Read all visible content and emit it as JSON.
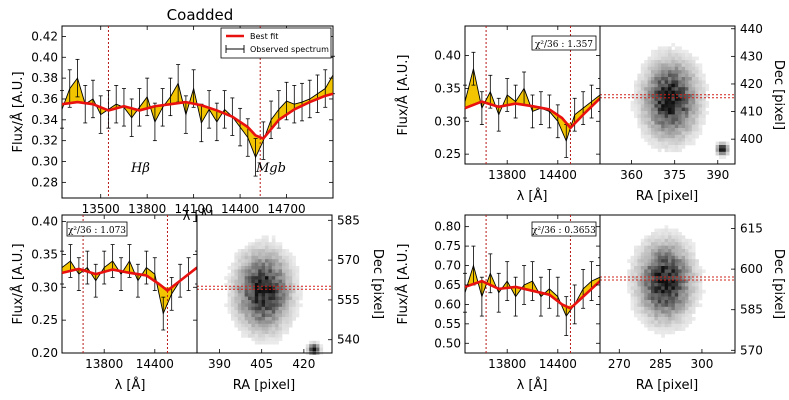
{
  "colors": {
    "fit": "#e8110f",
    "fill": "#f2c500",
    "line_marker": "#b81a1a"
  },
  "chart_data": [
    {
      "id": "main",
      "type": "line",
      "title": "Coadded",
      "xlabel": "λ [Å]",
      "ylabel": "Flux/Å [A.U.]",
      "xlim": [
        13250,
        15000
      ],
      "ylim": [
        0.265,
        0.43
      ],
      "xticks": [
        "13500",
        "13800",
        "14100",
        "14400",
        "14700"
      ],
      "yticks": [
        "0.28",
        "0.30",
        "0.32",
        "0.34",
        "0.36",
        "0.38",
        "0.40",
        "0.42"
      ],
      "lines": [
        {
          "wavelength": 13550,
          "label": "Hβ"
        },
        {
          "wavelength": 14530,
          "label": "Mgb"
        }
      ],
      "legend": [
        "Best fit",
        "Observed spectrum"
      ],
      "series": [
        {
          "name": "Observed spectrum",
          "x": [
            13250,
            13300,
            13350,
            13400,
            13450,
            13500,
            13550,
            13600,
            13650,
            13700,
            13750,
            13800,
            13850,
            13900,
            13950,
            14000,
            14050,
            14100,
            14150,
            14200,
            14250,
            14300,
            14350,
            14400,
            14450,
            14500,
            14550,
            14600,
            14650,
            14700,
            14750,
            14800,
            14850,
            14900,
            14950,
            15000
          ],
          "y": [
            0.35,
            0.37,
            0.38,
            0.355,
            0.36,
            0.345,
            0.35,
            0.355,
            0.352,
            0.342,
            0.352,
            0.362,
            0.338,
            0.352,
            0.362,
            0.375,
            0.345,
            0.37,
            0.337,
            0.35,
            0.338,
            0.35,
            0.343,
            0.333,
            0.323,
            0.304,
            0.32,
            0.34,
            0.35,
            0.358,
            0.355,
            0.357,
            0.36,
            0.365,
            0.37,
            0.383
          ],
          "err": [
            0.018,
            0.018,
            0.018,
            0.018,
            0.018,
            0.018,
            0.018,
            0.018,
            0.018,
            0.018,
            0.018,
            0.018,
            0.018,
            0.018,
            0.018,
            0.018,
            0.018,
            0.018,
            0.018,
            0.018,
            0.018,
            0.018,
            0.018,
            0.018,
            0.018,
            0.018,
            0.018,
            0.018,
            0.018,
            0.018,
            0.018,
            0.018,
            0.018,
            0.018,
            0.018,
            0.018
          ]
        },
        {
          "name": "Best fit",
          "x": [
            13250,
            13350,
            13450,
            13550,
            13650,
            13750,
            13850,
            13950,
            14050,
            14150,
            14250,
            14350,
            14450,
            14500,
            14550,
            14650,
            14750,
            14850,
            14950,
            15000
          ],
          "y": [
            0.355,
            0.357,
            0.355,
            0.349,
            0.353,
            0.349,
            0.353,
            0.355,
            0.357,
            0.354,
            0.349,
            0.343,
            0.333,
            0.325,
            0.322,
            0.34,
            0.35,
            0.357,
            0.363,
            0.365
          ]
        }
      ]
    },
    {
      "id": "g1",
      "type": "line",
      "chi2_label": "χ²/36 : 1.357",
      "xlabel": "λ [Å]",
      "ylabel": "Flux/Å [A.U.]",
      "xlim": [
        13300,
        14900
      ],
      "ylim": [
        0.235,
        0.445
      ],
      "xticks": [
        "13800",
        "14400"
      ],
      "yticks": [
        "0.25",
        "0.30",
        "0.35",
        "0.40"
      ],
      "lines": [
        13550,
        14550
      ],
      "series": [
        {
          "name": "Observed spectrum",
          "x": [
            13300,
            13400,
            13500,
            13600,
            13700,
            13800,
            13900,
            14000,
            14100,
            14200,
            14300,
            14400,
            14500,
            14600,
            14700,
            14800,
            14900
          ],
          "y": [
            0.33,
            0.38,
            0.32,
            0.345,
            0.31,
            0.34,
            0.33,
            0.35,
            0.315,
            0.32,
            0.315,
            0.3,
            0.27,
            0.31,
            0.32,
            0.33,
            0.34
          ],
          "err": [
            0.025,
            0.025,
            0.025,
            0.025,
            0.025,
            0.025,
            0.025,
            0.025,
            0.025,
            0.025,
            0.025,
            0.025,
            0.025,
            0.025,
            0.025,
            0.025,
            0.025
          ]
        },
        {
          "name": "Best fit",
          "x": [
            13300,
            13500,
            13700,
            13900,
            14100,
            14300,
            14450,
            14550,
            14700,
            14900
          ],
          "y": [
            0.32,
            0.33,
            0.322,
            0.327,
            0.323,
            0.318,
            0.305,
            0.29,
            0.31,
            0.335
          ]
        }
      ]
    },
    {
      "id": "img1",
      "type": "heatmap",
      "xlabel": "RA [pixel]",
      "ylabel": "Dec [pixel]",
      "xticks": [
        "360",
        "375",
        "390"
      ],
      "yticks": [
        "400",
        "410",
        "420",
        "430",
        "440"
      ],
      "xlim": [
        349,
        396
      ],
      "ylim": [
        391,
        441
      ],
      "center": [
        373,
        415
      ]
    },
    {
      "id": "g2",
      "type": "line",
      "chi2_label": "χ²/36 : 1.073",
      "xlabel": "λ [Å]",
      "ylabel": "Flux/Å [A.U.]",
      "xlim": [
        13300,
        14900
      ],
      "ylim": [
        0.2,
        0.41
      ],
      "xticks": [
        "13800",
        "14400"
      ],
      "yticks": [
        "0.20",
        "0.25",
        "0.30",
        "0.35",
        "0.40"
      ],
      "lines": [
        13550,
        14550
      ],
      "series": [
        {
          "name": "Observed spectrum",
          "x": [
            13300,
            13400,
            13500,
            13600,
            13700,
            13800,
            13900,
            14000,
            14100,
            14200,
            14300,
            14400,
            14500,
            14600,
            14700,
            14800,
            14900
          ],
          "y": [
            0.33,
            0.34,
            0.32,
            0.33,
            0.31,
            0.33,
            0.34,
            0.32,
            0.34,
            0.31,
            0.33,
            0.32,
            0.26,
            0.29,
            0.31,
            0.32,
            0.33
          ],
          "err": [
            0.025,
            0.025,
            0.025,
            0.025,
            0.025,
            0.025,
            0.025,
            0.025,
            0.025,
            0.025,
            0.025,
            0.025,
            0.025,
            0.025,
            0.025,
            0.025,
            0.025
          ]
        },
        {
          "name": "Best fit",
          "x": [
            13300,
            13500,
            13700,
            13900,
            14100,
            14300,
            14450,
            14550,
            14700,
            14900
          ],
          "y": [
            0.322,
            0.328,
            0.32,
            0.327,
            0.322,
            0.318,
            0.305,
            0.295,
            0.31,
            0.33
          ]
        }
      ]
    },
    {
      "id": "img2",
      "type": "heatmap",
      "xlabel": "RA [pixel]",
      "ylabel": "Dec [pixel]",
      "xticks": [
        "390",
        "405",
        "420"
      ],
      "yticks": [
        "540",
        "555",
        "570",
        "585"
      ],
      "xlim": [
        382,
        430
      ],
      "ylim": [
        535,
        587
      ],
      "center": [
        405,
        559
      ]
    },
    {
      "id": "g3",
      "type": "line",
      "chi2_label": "χ²/36 : 0.3653",
      "xlabel": "λ [Å]",
      "ylabel": "Flux/Å [A.U.]",
      "xlim": [
        13300,
        14900
      ],
      "ylim": [
        0.475,
        0.83
      ],
      "xticks": [
        "13800",
        "14400"
      ],
      "yticks": [
        "0.50",
        "0.55",
        "0.60",
        "0.65",
        "0.70",
        "0.75",
        "0.80"
      ],
      "lines": [
        13550,
        14550
      ],
      "series": [
        {
          "name": "Observed spectrum",
          "x": [
            13300,
            13400,
            13500,
            13600,
            13700,
            13800,
            13900,
            14000,
            14100,
            14200,
            14300,
            14400,
            14500,
            14600,
            14700,
            14800,
            14900
          ],
          "y": [
            0.63,
            0.7,
            0.62,
            0.68,
            0.63,
            0.66,
            0.62,
            0.65,
            0.66,
            0.62,
            0.64,
            0.62,
            0.57,
            0.6,
            0.64,
            0.66,
            0.67
          ],
          "err": [
            0.05,
            0.05,
            0.05,
            0.05,
            0.05,
            0.05,
            0.05,
            0.05,
            0.05,
            0.05,
            0.05,
            0.05,
            0.05,
            0.05,
            0.05,
            0.05,
            0.05
          ]
        },
        {
          "name": "Best fit",
          "x": [
            13300,
            13500,
            13700,
            13900,
            14100,
            14300,
            14450,
            14550,
            14700,
            14900
          ],
          "y": [
            0.645,
            0.66,
            0.64,
            0.645,
            0.635,
            0.625,
            0.6,
            0.59,
            0.62,
            0.66
          ]
        }
      ]
    },
    {
      "id": "img3",
      "type": "heatmap",
      "xlabel": "RA [pixel]",
      "ylabel": "Dec [pixel]",
      "xticks": [
        "270",
        "285",
        "300"
      ],
      "yticks": [
        "570",
        "585",
        "600",
        "615"
      ],
      "xlim": [
        263,
        312
      ],
      "ylim": [
        569,
        620
      ],
      "center": [
        286,
        596
      ]
    }
  ]
}
